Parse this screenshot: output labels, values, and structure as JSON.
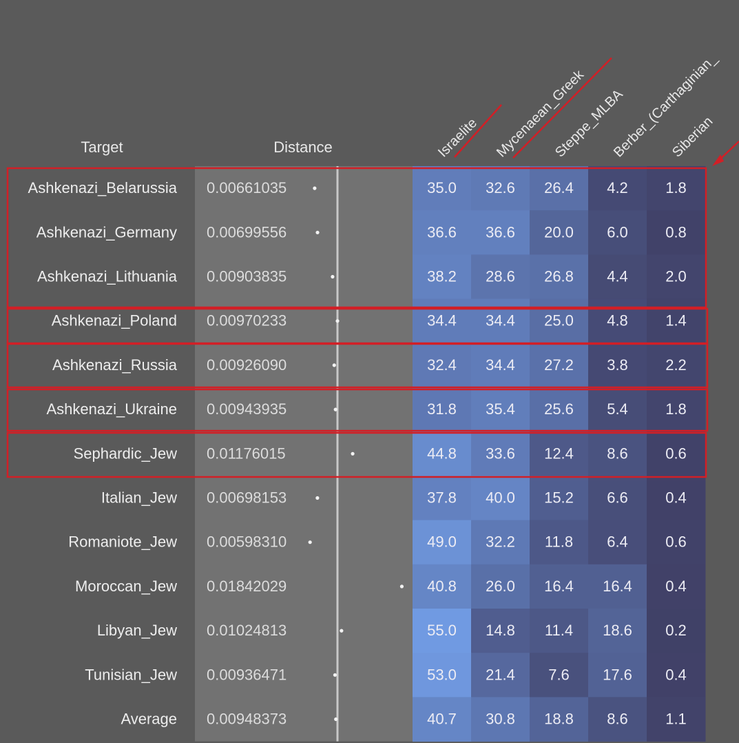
{
  "chart_data": {
    "type": "table",
    "columns": {
      "target": "Target",
      "distance": "Distance",
      "components": [
        "Israelite",
        "Mycenaean_Greek",
        "Steppe_MLBA",
        "Berber_(Carthaginian_",
        "Siberian"
      ]
    },
    "rows": [
      {
        "target": "Ashkenazi_Belarussia",
        "distance": "0.00661035",
        "values": [
          35.0,
          32.6,
          26.4,
          4.2,
          1.8
        ]
      },
      {
        "target": "Ashkenazi_Germany",
        "distance": "0.00699556",
        "values": [
          36.6,
          36.6,
          20.0,
          6.0,
          0.8
        ]
      },
      {
        "target": "Ashkenazi_Lithuania",
        "distance": "0.00903835",
        "values": [
          38.2,
          28.6,
          26.8,
          4.4,
          2.0
        ]
      },
      {
        "target": "Ashkenazi_Poland",
        "distance": "0.00970233",
        "values": [
          34.4,
          34.4,
          25.0,
          4.8,
          1.4
        ]
      },
      {
        "target": "Ashkenazi_Russia",
        "distance": "0.00926090",
        "values": [
          32.4,
          34.4,
          27.2,
          3.8,
          2.2
        ]
      },
      {
        "target": "Ashkenazi_Ukraine",
        "distance": "0.00943935",
        "values": [
          31.8,
          35.4,
          25.6,
          5.4,
          1.8
        ]
      },
      {
        "target": "Sephardic_Jew",
        "distance": "0.01176015",
        "values": [
          44.8,
          33.6,
          12.4,
          8.6,
          0.6
        ]
      },
      {
        "target": "Italian_Jew",
        "distance": "0.00698153",
        "values": [
          37.8,
          40.0,
          15.2,
          6.6,
          0.4
        ]
      },
      {
        "target": "Romaniote_Jew",
        "distance": "0.00598310",
        "values": [
          49.0,
          32.2,
          11.8,
          6.4,
          0.6
        ]
      },
      {
        "target": "Moroccan_Jew",
        "distance": "0.01842029",
        "values": [
          40.8,
          26.0,
          16.4,
          16.4,
          0.4
        ]
      },
      {
        "target": "Libyan_Jew",
        "distance": "0.01024813",
        "values": [
          55.0,
          14.8,
          11.4,
          18.6,
          0.2
        ]
      },
      {
        "target": "Tunisian_Jew",
        "distance": "0.00936471",
        "values": [
          53.0,
          21.4,
          7.6,
          17.6,
          0.4
        ]
      },
      {
        "target": "Average",
        "distance": "0.00948373",
        "values": [
          40.7,
          30.8,
          18.8,
          8.6,
          1.1
        ]
      }
    ]
  }
}
